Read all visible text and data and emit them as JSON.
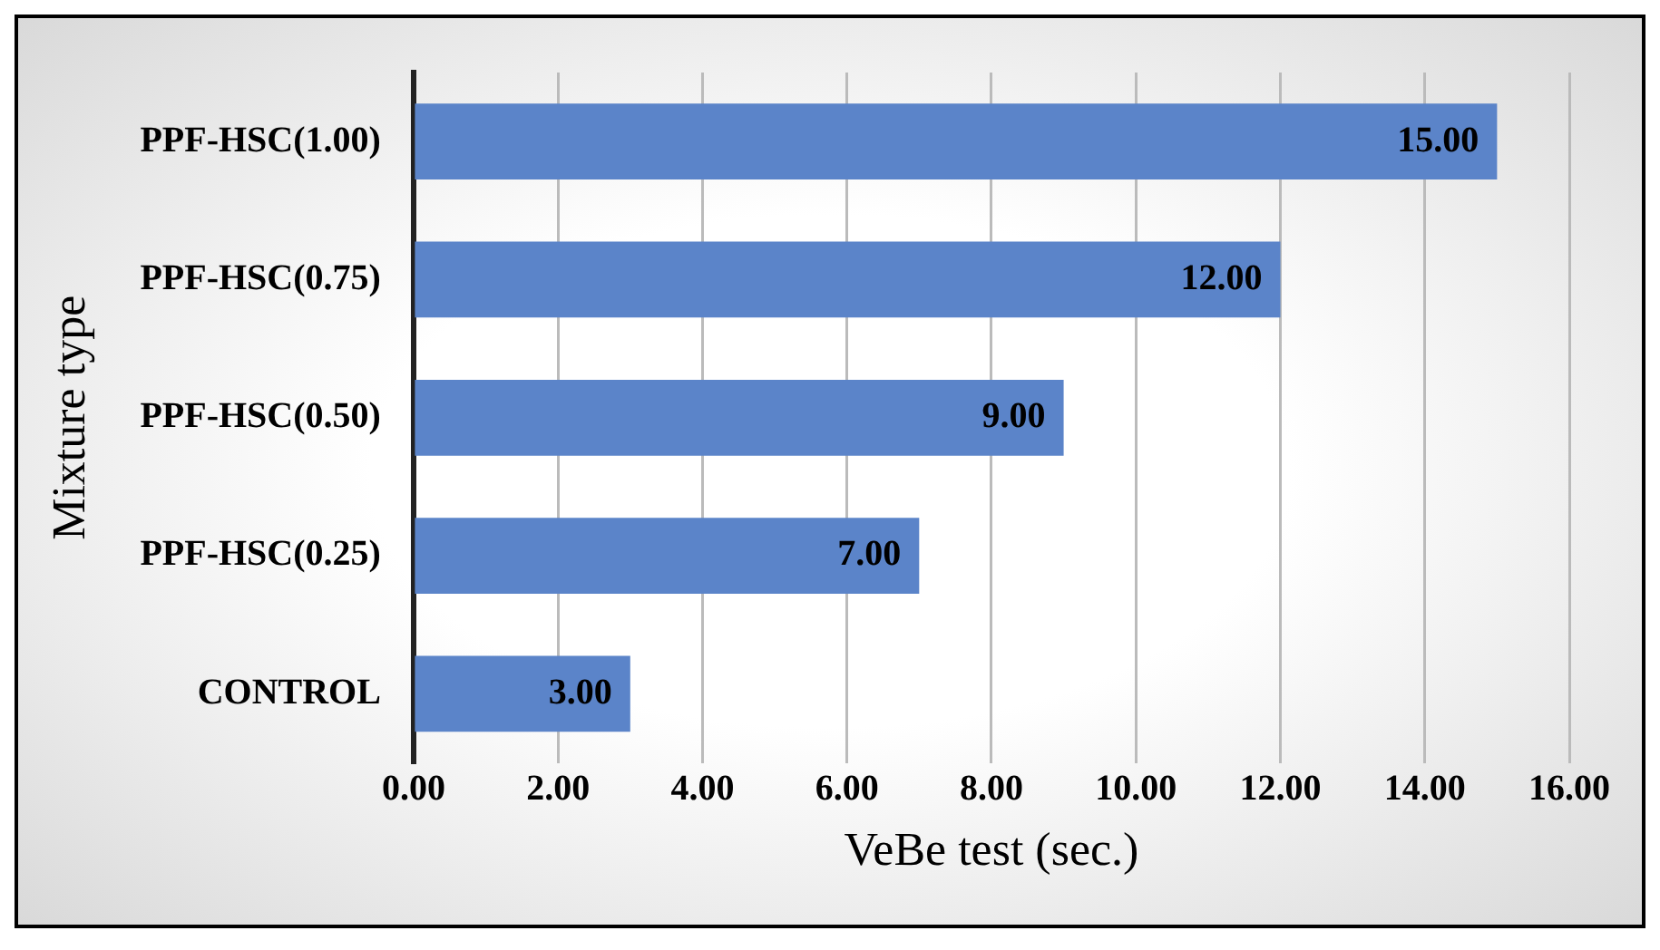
{
  "chart_data": {
    "type": "bar",
    "orientation": "horizontal",
    "xlabel": "VeBe test (sec.)",
    "ylabel": "Mixture type",
    "categories": [
      "PPF-HSC(1.00)",
      "PPF-HSC(0.75)",
      "PPF-HSC(0.50)",
      "PPF-HSC(0.25)",
      "CONTROL"
    ],
    "values": [
      15,
      12,
      9,
      7,
      3
    ],
    "color": "#5b84c9",
    "value_labels": [
      "15.00",
      "12.00",
      "9.00",
      "7.00",
      "3.00"
    ],
    "xlim": [
      0,
      16
    ],
    "xticks": [
      {
        "value": 0,
        "label": "0.00"
      },
      {
        "value": 2,
        "label": "2.00"
      },
      {
        "value": 4,
        "label": "4.00"
      },
      {
        "value": 6,
        "label": "6.00"
      },
      {
        "value": 8,
        "label": "8.00"
      },
      {
        "value": 10,
        "label": "10.00"
      },
      {
        "value": 12,
        "label": "12.00"
      },
      {
        "value": 14,
        "label": "14.00"
      },
      {
        "value": 16,
        "label": "16.00"
      }
    ],
    "grid": "x",
    "legend": false
  }
}
